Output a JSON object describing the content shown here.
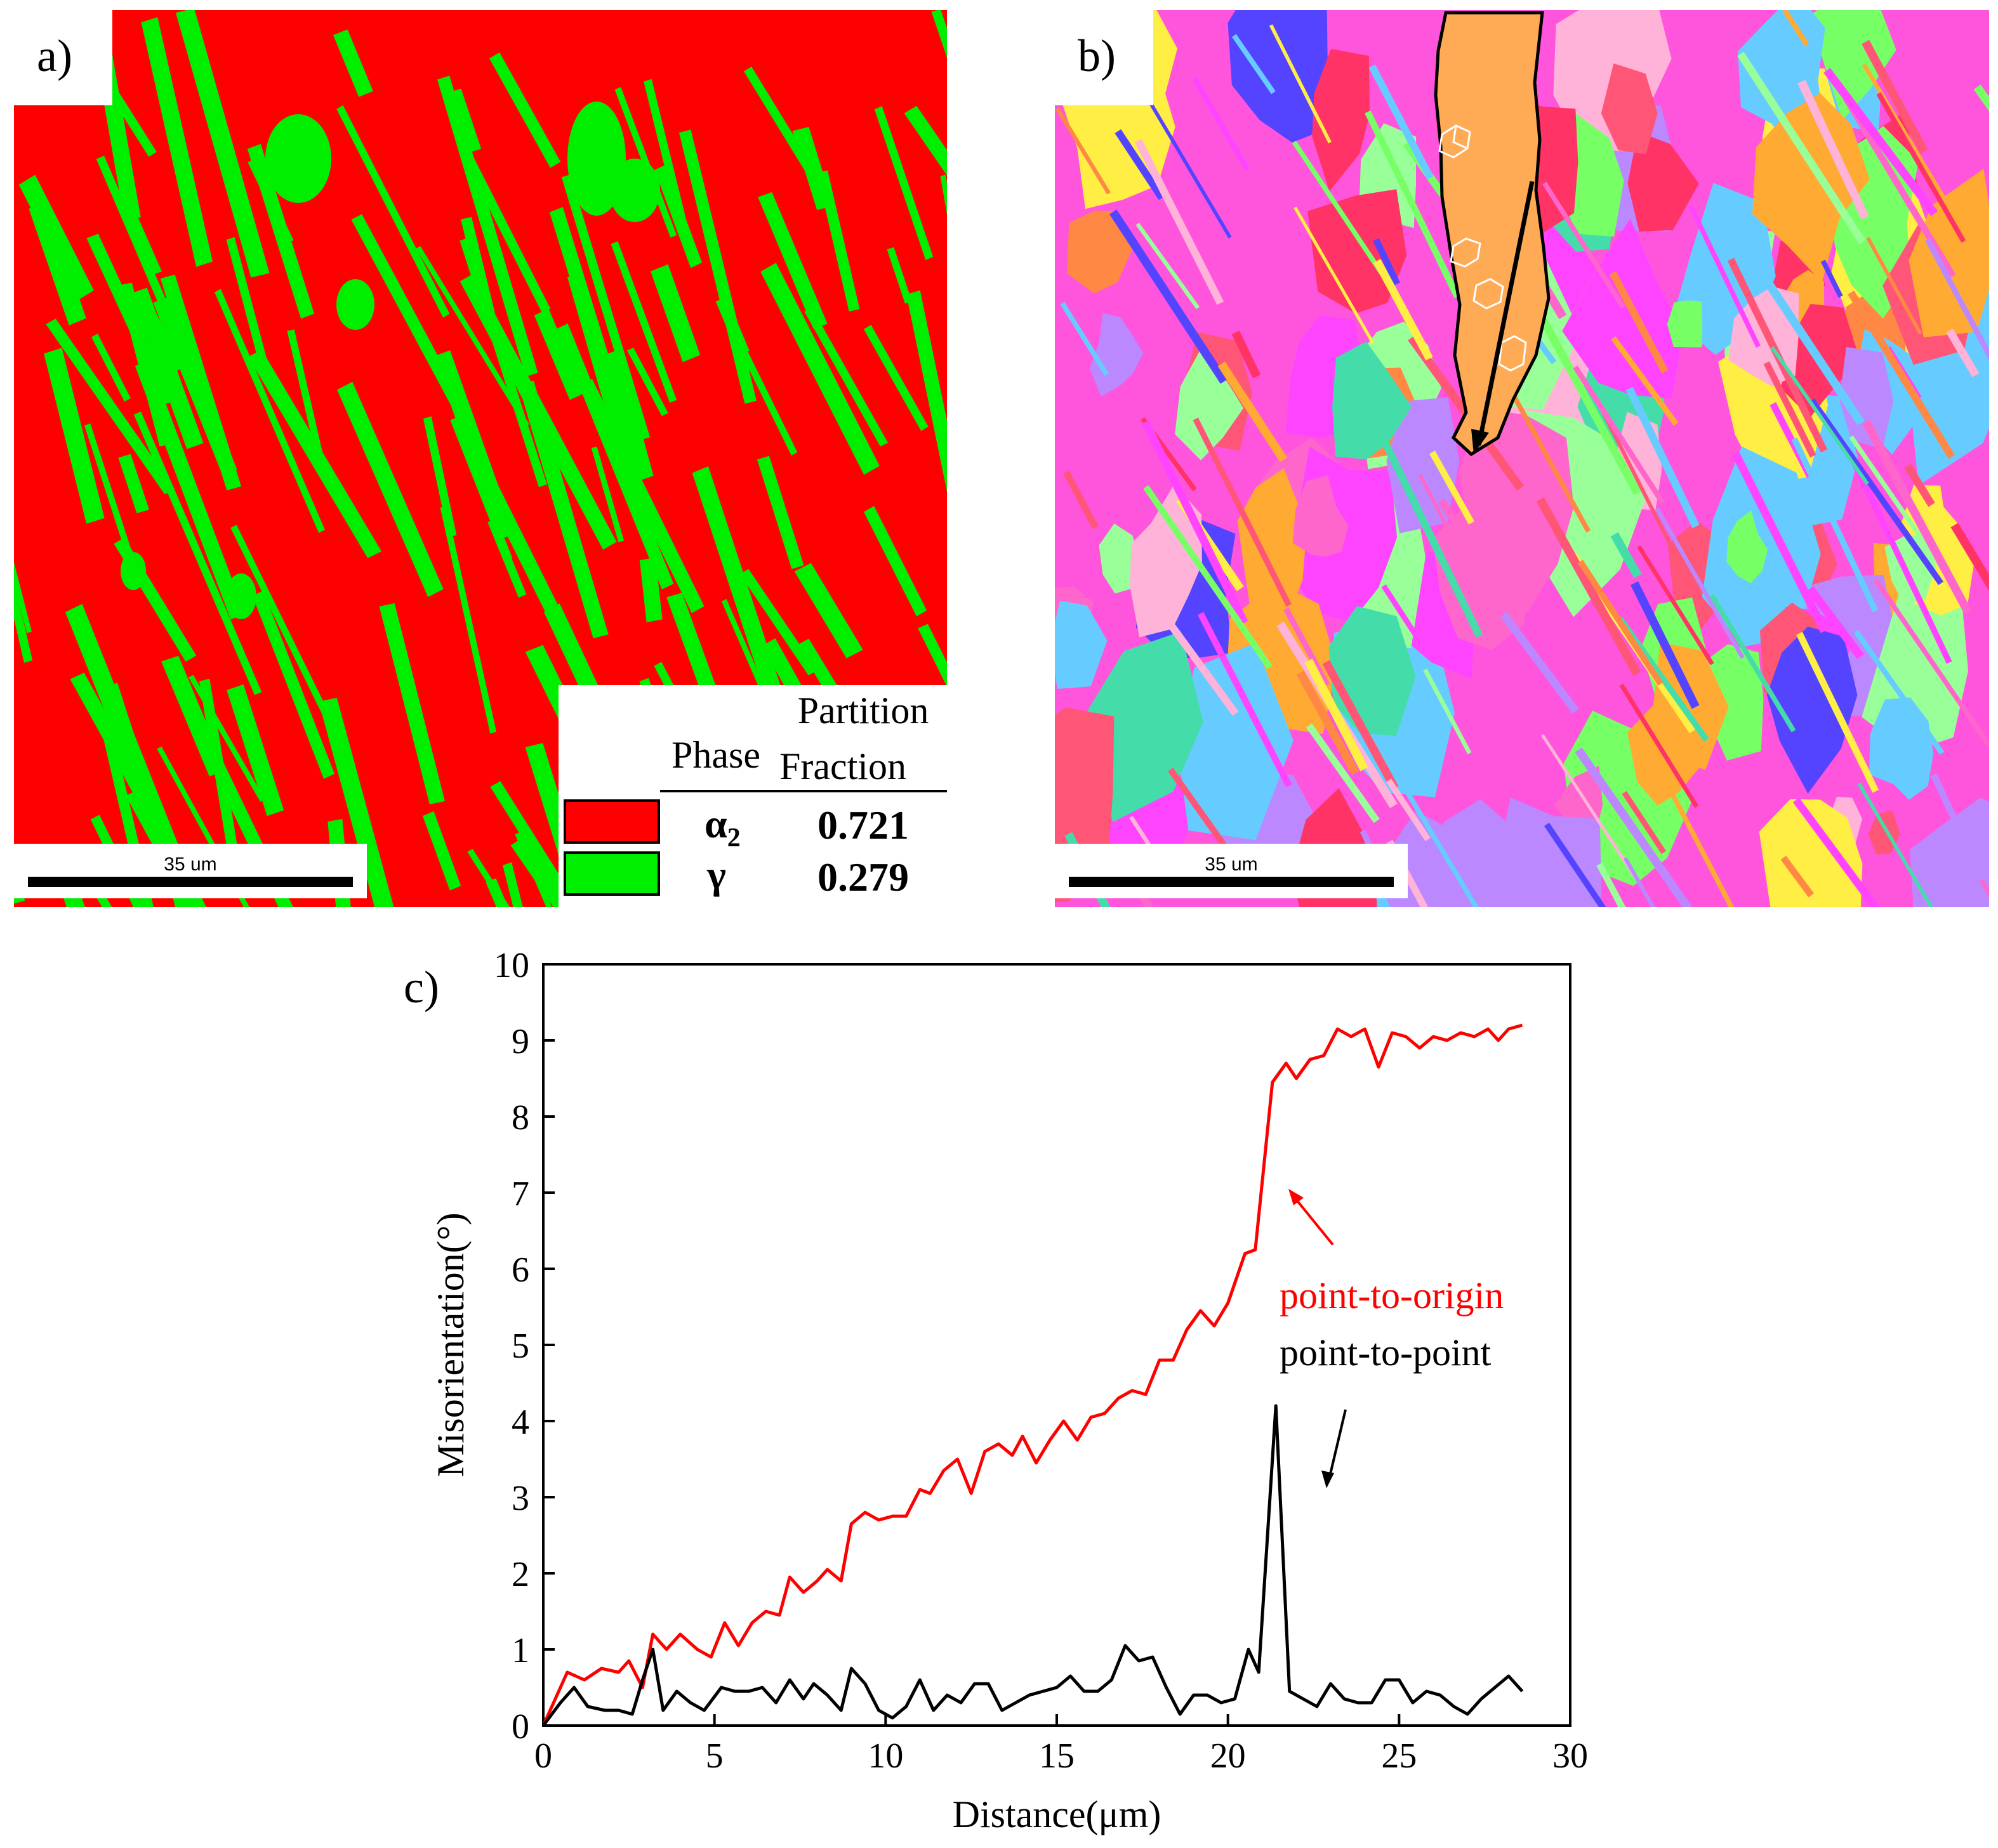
{
  "panels": {
    "a": {
      "label": "a)",
      "colors": {
        "alpha2": "#ff0000",
        "gamma": "#00ee00"
      },
      "scale_bar": "35 um",
      "legend": {
        "col_phase": "Phase",
        "col_fraction_1": "Partition",
        "col_fraction_2": "Fraction",
        "rows": [
          {
            "phase": "α",
            "sub": "2",
            "fraction": "0.721",
            "color": "#ff0000"
          },
          {
            "phase": "γ",
            "sub": "",
            "fraction": "0.279",
            "color": "#00ee00"
          }
        ]
      }
    },
    "b": {
      "label": "b)",
      "scale_bar": "35 um",
      "grain_colors": [
        "#ff44ff",
        "#ff66cc",
        "#ff5577",
        "#ffaa33",
        "#77ff66",
        "#44ddaa",
        "#bb88ff",
        "#5544ff",
        "#ffee44",
        "#ff3366",
        "#66ccff",
        "#ffb3d9",
        "#99ff99",
        "#ff8844"
      ]
    },
    "c": {
      "label": "c)",
      "chart_data": {
        "type": "line",
        "xlabel": "Distance(μm)",
        "ylabel": "Misorientation(°)",
        "xlim": [
          0,
          30
        ],
        "ylim": [
          0,
          10
        ],
        "xticks": [
          "0",
          "5",
          "10",
          "15",
          "20",
          "25",
          "30"
        ],
        "yticks": [
          "0",
          "1",
          "2",
          "3",
          "4",
          "5",
          "6",
          "7",
          "8",
          "9",
          "10"
        ],
        "series": [
          {
            "name": "point-to-origin",
            "color": "#ff0000",
            "points": [
              [
                0,
                0
              ],
              [
                0.7,
                0.7
              ],
              [
                1.2,
                0.6
              ],
              [
                1.7,
                0.75
              ],
              [
                2.2,
                0.7
              ],
              [
                2.5,
                0.85
              ],
              [
                2.9,
                0.5
              ],
              [
                3.2,
                1.2
              ],
              [
                3.6,
                1.0
              ],
              [
                4.0,
                1.2
              ],
              [
                4.5,
                1.0
              ],
              [
                4.9,
                0.9
              ],
              [
                5.3,
                1.35
              ],
              [
                5.7,
                1.05
              ],
              [
                6.1,
                1.35
              ],
              [
                6.5,
                1.5
              ],
              [
                6.9,
                1.45
              ],
              [
                7.2,
                1.95
              ],
              [
                7.6,
                1.75
              ],
              [
                8.0,
                1.9
              ],
              [
                8.3,
                2.05
              ],
              [
                8.7,
                1.9
              ],
              [
                9.0,
                2.65
              ],
              [
                9.4,
                2.8
              ],
              [
                9.8,
                2.7
              ],
              [
                10.2,
                2.75
              ],
              [
                10.6,
                2.75
              ],
              [
                11.0,
                3.1
              ],
              [
                11.3,
                3.05
              ],
              [
                11.7,
                3.35
              ],
              [
                12.1,
                3.5
              ],
              [
                12.5,
                3.05
              ],
              [
                12.9,
                3.6
              ],
              [
                13.3,
                3.7
              ],
              [
                13.7,
                3.55
              ],
              [
                14.0,
                3.8
              ],
              [
                14.4,
                3.45
              ],
              [
                14.8,
                3.75
              ],
              [
                15.2,
                4.0
              ],
              [
                15.6,
                3.75
              ],
              [
                16.0,
                4.05
              ],
              [
                16.4,
                4.1
              ],
              [
                16.8,
                4.3
              ],
              [
                17.2,
                4.4
              ],
              [
                17.6,
                4.35
              ],
              [
                18.0,
                4.8
              ],
              [
                18.4,
                4.8
              ],
              [
                18.8,
                5.2
              ],
              [
                19.2,
                5.45
              ],
              [
                19.6,
                5.25
              ],
              [
                20.0,
                5.55
              ],
              [
                20.5,
                6.2
              ],
              [
                20.8,
                6.25
              ],
              [
                21.3,
                8.45
              ],
              [
                21.7,
                8.7
              ],
              [
                22.0,
                8.5
              ],
              [
                22.4,
                8.75
              ],
              [
                22.8,
                8.8
              ],
              [
                23.2,
                9.15
              ],
              [
                23.6,
                9.05
              ],
              [
                24.0,
                9.15
              ],
              [
                24.4,
                8.65
              ],
              [
                24.8,
                9.1
              ],
              [
                25.2,
                9.05
              ],
              [
                25.6,
                8.9
              ],
              [
                26.0,
                9.05
              ],
              [
                26.4,
                9.0
              ],
              [
                26.8,
                9.1
              ],
              [
                27.2,
                9.05
              ],
              [
                27.6,
                9.15
              ],
              [
                27.9,
                9.0
              ],
              [
                28.2,
                9.15
              ],
              [
                28.6,
                9.2
              ]
            ]
          },
          {
            "name": "point-to-point",
            "color": "#000000",
            "points": [
              [
                0,
                0
              ],
              [
                0.5,
                0.3
              ],
              [
                0.9,
                0.5
              ],
              [
                1.3,
                0.25
              ],
              [
                1.8,
                0.2
              ],
              [
                2.2,
                0.2
              ],
              [
                2.6,
                0.15
              ],
              [
                2.9,
                0.6
              ],
              [
                3.2,
                1.0
              ],
              [
                3.5,
                0.2
              ],
              [
                3.9,
                0.45
              ],
              [
                4.3,
                0.3
              ],
              [
                4.7,
                0.2
              ],
              [
                5.2,
                0.5
              ],
              [
                5.6,
                0.45
              ],
              [
                6.0,
                0.45
              ],
              [
                6.4,
                0.5
              ],
              [
                6.8,
                0.3
              ],
              [
                7.2,
                0.6
              ],
              [
                7.6,
                0.35
              ],
              [
                7.9,
                0.55
              ],
              [
                8.3,
                0.4
              ],
              [
                8.7,
                0.2
              ],
              [
                9.0,
                0.75
              ],
              [
                9.4,
                0.55
              ],
              [
                9.8,
                0.2
              ],
              [
                10.2,
                0.1
              ],
              [
                10.6,
                0.25
              ],
              [
                11.0,
                0.6
              ],
              [
                11.4,
                0.2
              ],
              [
                11.8,
                0.4
              ],
              [
                12.2,
                0.3
              ],
              [
                12.6,
                0.55
              ],
              [
                13.0,
                0.55
              ],
              [
                13.4,
                0.2
              ],
              [
                13.8,
                0.3
              ],
              [
                14.2,
                0.4
              ],
              [
                14.6,
                0.45
              ],
              [
                15.0,
                0.5
              ],
              [
                15.4,
                0.65
              ],
              [
                15.8,
                0.45
              ],
              [
                16.2,
                0.45
              ],
              [
                16.6,
                0.6
              ],
              [
                17.0,
                1.05
              ],
              [
                17.4,
                0.85
              ],
              [
                17.8,
                0.9
              ],
              [
                18.2,
                0.5
              ],
              [
                18.6,
                0.15
              ],
              [
                19.0,
                0.4
              ],
              [
                19.4,
                0.4
              ],
              [
                19.8,
                0.3
              ],
              [
                20.2,
                0.35
              ],
              [
                20.6,
                1.0
              ],
              [
                20.9,
                0.7
              ],
              [
                21.4,
                4.2
              ],
              [
                21.8,
                0.45
              ],
              [
                22.2,
                0.35
              ],
              [
                22.6,
                0.25
              ],
              [
                23.0,
                0.55
              ],
              [
                23.4,
                0.35
              ],
              [
                23.8,
                0.3
              ],
              [
                24.2,
                0.3
              ],
              [
                24.6,
                0.6
              ],
              [
                25.0,
                0.6
              ],
              [
                25.4,
                0.3
              ],
              [
                25.8,
                0.45
              ],
              [
                26.2,
                0.4
              ],
              [
                26.6,
                0.25
              ],
              [
                27.0,
                0.15
              ],
              [
                27.4,
                0.35
              ],
              [
                27.8,
                0.5
              ],
              [
                28.2,
                0.65
              ],
              [
                28.6,
                0.45
              ]
            ]
          }
        ],
        "annotations": [
          {
            "text": "point-to-origin",
            "color": "#ff0000"
          },
          {
            "text": "point-to-point",
            "color": "#000000"
          }
        ]
      }
    }
  }
}
